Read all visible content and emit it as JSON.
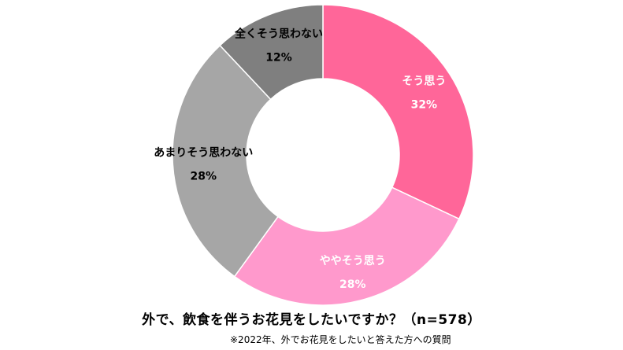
{
  "chart_data": {
    "type": "pie",
    "style": "donut",
    "title": "外で、飲食を伴うお花見をしたいですか？（n=578）",
    "note": "※2022年、外でお花見をしたいと答えた方への質問",
    "slices": [
      {
        "label": "そう思う",
        "value": 32,
        "value_label": "32%",
        "color": "#FF6699",
        "text_color": "#FFFFFF"
      },
      {
        "label": "ややそう思う",
        "value": 28,
        "value_label": "28%",
        "color": "#FF99CC",
        "text_color": "#FFFFFF"
      },
      {
        "label": "あまりそう思わない",
        "value": 28,
        "value_label": "28%",
        "color": "#A6A6A6",
        "text_color": "#000000"
      },
      {
        "label": "全くそう思わない",
        "value": 12,
        "value_label": "12%",
        "color": "#7F7F7F",
        "text_color": "#000000"
      }
    ]
  }
}
